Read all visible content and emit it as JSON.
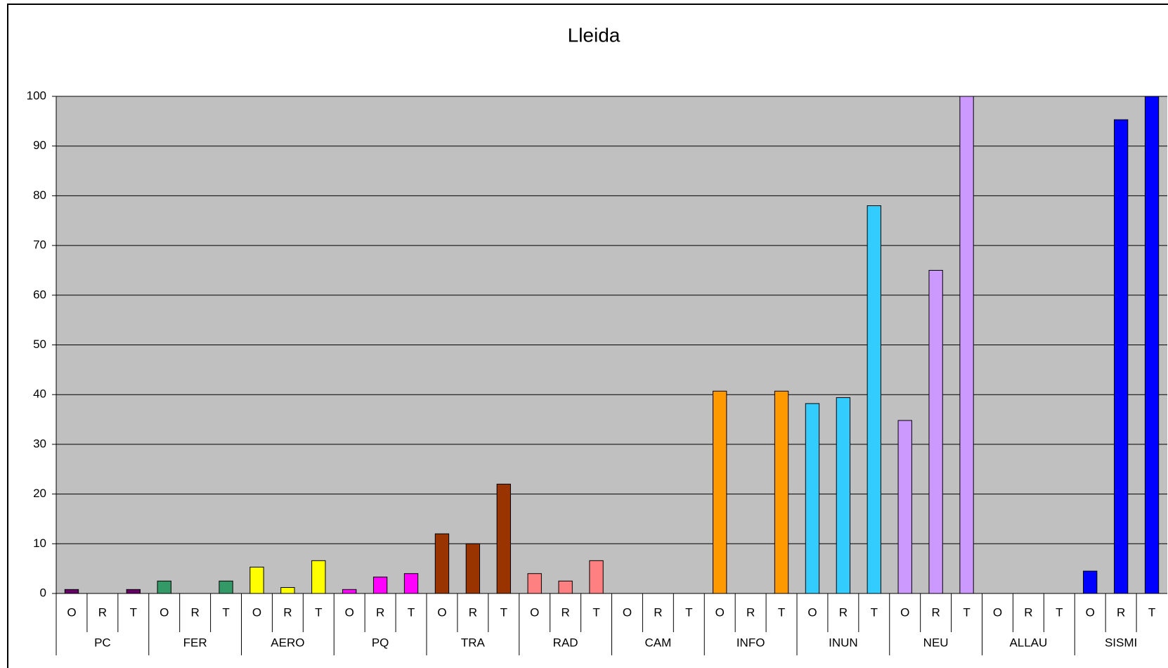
{
  "chart_data": {
    "type": "bar",
    "title": "Lleida",
    "ylim": [
      0,
      100
    ],
    "yticks": [
      0,
      10,
      20,
      30,
      40,
      50,
      60,
      70,
      80,
      90,
      100
    ],
    "grid": true,
    "groups": [
      {
        "name": "PC",
        "color": "#660066",
        "labels": [
          "O",
          "R",
          "T"
        ],
        "values": [
          0.8,
          0,
          0.8
        ]
      },
      {
        "name": "FER",
        "color": "#339966",
        "labels": [
          "O",
          "R",
          "T"
        ],
        "values": [
          2.5,
          0,
          2.5
        ]
      },
      {
        "name": "AERO",
        "color": "#ffff00",
        "labels": [
          "O",
          "R",
          "T"
        ],
        "values": [
          5.3,
          1.2,
          6.6
        ]
      },
      {
        "name": "PQ",
        "color": "#ff00ff",
        "labels": [
          "O",
          "R",
          "T"
        ],
        "values": [
          0.8,
          3.3,
          4.0
        ]
      },
      {
        "name": "TRA",
        "color": "#993300",
        "labels": [
          "O",
          "R",
          "T"
        ],
        "values": [
          12,
          10,
          22
        ]
      },
      {
        "name": "RAD",
        "color": "#ff8080",
        "labels": [
          "O",
          "R",
          "T"
        ],
        "values": [
          4.0,
          2.5,
          6.6
        ]
      },
      {
        "name": "CAM",
        "labels": [
          "O",
          "R",
          "T"
        ],
        "values": [
          0,
          0,
          0
        ]
      },
      {
        "name": "INFO",
        "color": "#ff9900",
        "labels": [
          "O",
          "R",
          "T"
        ],
        "values": [
          40.7,
          0,
          40.7
        ]
      },
      {
        "name": "INUN",
        "color": "#33ccff",
        "labels": [
          "O",
          "R",
          "T"
        ],
        "values": [
          38.2,
          39.4,
          78
        ]
      },
      {
        "name": "NEU",
        "color": "#cc99ff",
        "labels": [
          "O",
          "R",
          "T"
        ],
        "values": [
          34.8,
          65,
          100
        ]
      },
      {
        "name": "ALLAU",
        "labels": [
          "O",
          "R",
          "T"
        ],
        "values": [
          0,
          0,
          0
        ]
      },
      {
        "name": "SISMI",
        "color": "#0000ff",
        "labels": [
          "O",
          "R",
          "T"
        ],
        "values": [
          4.5,
          95.3,
          100
        ]
      }
    ]
  }
}
